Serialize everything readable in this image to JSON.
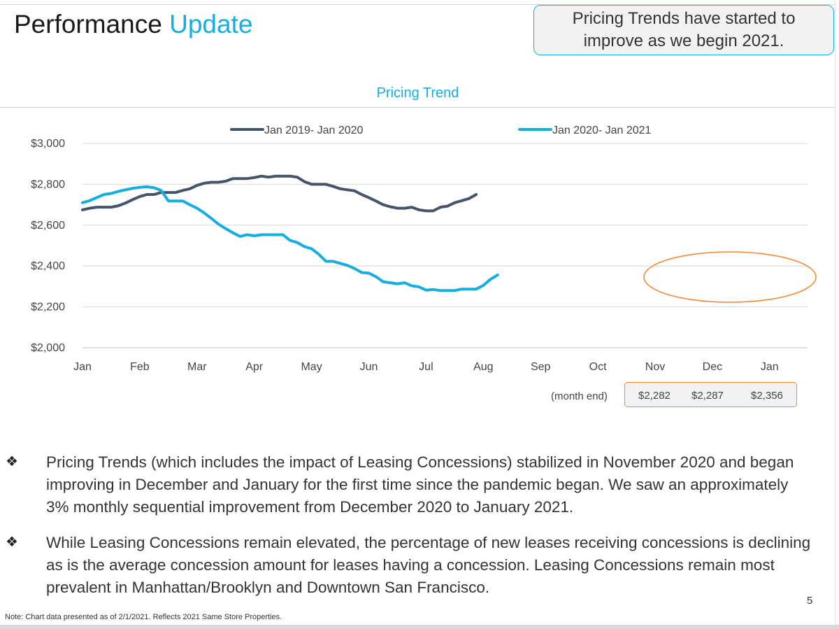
{
  "header": {
    "title_main": "Performance",
    "title_accent": "Update"
  },
  "callout": {
    "line1": "Pricing Trends have started to",
    "line2": "improve as we begin 2021."
  },
  "chart_data": {
    "type": "line",
    "title": "Pricing Trend",
    "categories": [
      "Jan",
      "Feb",
      "Mar",
      "Apr",
      "May",
      "Jun",
      "Jul",
      "Aug",
      "Sep",
      "Oct",
      "Nov",
      "Dec",
      "Jan"
    ],
    "ytick_labels": [
      "$2,000",
      "$2,200",
      "$2,400",
      "$2,600",
      "$2,800",
      "$3,000"
    ],
    "ylim": [
      2000,
      3000
    ],
    "grid": true,
    "legend_position": "top",
    "series": [
      {
        "name": "Jan 2019- Jan 2020",
        "color": "#44546a",
        "points": [
          [
            0,
            2675
          ],
          [
            0.25,
            2683
          ],
          [
            0.5,
            2688
          ],
          [
            0.75,
            2688
          ],
          [
            1,
            2688
          ],
          [
            1.25,
            2695
          ],
          [
            1.5,
            2708
          ],
          [
            1.75,
            2725
          ],
          [
            2,
            2740
          ],
          [
            2.25,
            2750
          ],
          [
            2.5,
            2750
          ],
          [
            2.75,
            2760
          ],
          [
            3,
            2760
          ],
          [
            3.25,
            2760
          ],
          [
            3.5,
            2770
          ],
          [
            3.75,
            2778
          ],
          [
            4,
            2795
          ],
          [
            4.25,
            2805
          ],
          [
            4.5,
            2810
          ],
          [
            4.75,
            2810
          ],
          [
            5,
            2815
          ],
          [
            5.25,
            2828
          ],
          [
            5.5,
            2828
          ],
          [
            5.75,
            2828
          ],
          [
            6,
            2833
          ],
          [
            6.25,
            2840
          ],
          [
            6.5,
            2835
          ],
          [
            6.75,
            2840
          ],
          [
            7,
            2840
          ],
          [
            7.25,
            2840
          ],
          [
            7.5,
            2835
          ],
          [
            7.75,
            2813
          ],
          [
            8,
            2800
          ],
          [
            8.25,
            2800
          ],
          [
            8.5,
            2800
          ],
          [
            8.75,
            2790
          ],
          [
            9,
            2778
          ],
          [
            9.25,
            2773
          ],
          [
            9.5,
            2768
          ],
          [
            9.75,
            2750
          ],
          [
            10,
            2735
          ],
          [
            10.25,
            2718
          ],
          [
            10.5,
            2700
          ],
          [
            10.75,
            2690
          ],
          [
            11,
            2683
          ],
          [
            11.25,
            2683
          ],
          [
            11.5,
            2688
          ],
          [
            11.75,
            2675
          ],
          [
            12,
            2670
          ],
          [
            12.25,
            2670
          ],
          [
            12.5,
            2688
          ],
          [
            12.75,
            2693
          ],
          [
            13,
            2710
          ],
          [
            13.25,
            2720
          ],
          [
            13.5,
            2730
          ],
          [
            13.75,
            2750
          ]
        ]
      },
      {
        "name": "Jan 2020- Jan 2021",
        "color": "#16aee0",
        "points": [
          [
            0,
            2710
          ],
          [
            0.25,
            2720
          ],
          [
            0.5,
            2735
          ],
          [
            0.75,
            2750
          ],
          [
            1,
            2755
          ],
          [
            1.25,
            2765
          ],
          [
            1.5,
            2773
          ],
          [
            1.75,
            2780
          ],
          [
            2,
            2785
          ],
          [
            2.25,
            2788
          ],
          [
            2.5,
            2783
          ],
          [
            2.75,
            2770
          ],
          [
            3,
            2718
          ],
          [
            3.25,
            2718
          ],
          [
            3.5,
            2718
          ],
          [
            3.75,
            2700
          ],
          [
            4,
            2683
          ],
          [
            4.25,
            2660
          ],
          [
            4.5,
            2633
          ],
          [
            4.75,
            2605
          ],
          [
            5,
            2583
          ],
          [
            5.25,
            2563
          ],
          [
            5.5,
            2545
          ],
          [
            5.75,
            2553
          ],
          [
            6,
            2548
          ],
          [
            6.25,
            2553
          ],
          [
            6.5,
            2553
          ],
          [
            6.75,
            2553
          ],
          [
            7,
            2553
          ],
          [
            7.25,
            2525
          ],
          [
            7.5,
            2515
          ],
          [
            7.75,
            2495
          ],
          [
            8,
            2485
          ],
          [
            8.25,
            2458
          ],
          [
            8.5,
            2423
          ],
          [
            8.75,
            2423
          ],
          [
            9,
            2413
          ],
          [
            9.25,
            2403
          ],
          [
            9.5,
            2388
          ],
          [
            9.75,
            2368
          ],
          [
            10,
            2365
          ],
          [
            10.25,
            2348
          ],
          [
            10.5,
            2323
          ],
          [
            10.75,
            2318
          ],
          [
            11,
            2313
          ],
          [
            11.25,
            2318
          ],
          [
            11.5,
            2303
          ],
          [
            11.75,
            2298
          ],
          [
            12,
            2282
          ],
          [
            12.25,
            2285
          ],
          [
            12.5,
            2280
          ],
          [
            12.75,
            2280
          ],
          [
            13,
            2280
          ],
          [
            13.25,
            2287
          ],
          [
            13.5,
            2287
          ],
          [
            13.75,
            2287
          ],
          [
            14,
            2305
          ],
          [
            14.25,
            2335
          ],
          [
            14.5,
            2356
          ]
        ]
      }
    ],
    "month_end": {
      "label": "(month end)",
      "values": [
        "$2,282",
        "$2,287",
        "$2,356"
      ]
    }
  },
  "bullets": [
    {
      "icon": "diamond-bullet-icon",
      "text": "Pricing Trends (which includes the impact of Leasing Concessions) stabilized in November 2020 and began improving in December and January for the first time since the pandemic began. We saw an approximately 3% monthly sequential improvement from December 2020 to January 2021."
    },
    {
      "icon": "diamond-bullet-icon",
      "text": "While Leasing Concessions remain elevated, the percentage of new leases receiving concessions is declining as is the average concession amount for leases having a concession. Leasing Concessions remain most prevalent in Manhattan/Brooklyn and Downtown San Francisco."
    }
  ],
  "footer": {
    "page_number": "5",
    "note": "Note: Chart data presented as of 2/1/2021. Reflects 2021 Same Store Properties."
  },
  "colors": {
    "accent": "#16aee0",
    "series_dark": "#44546a",
    "highlight": "#f08a3c"
  }
}
